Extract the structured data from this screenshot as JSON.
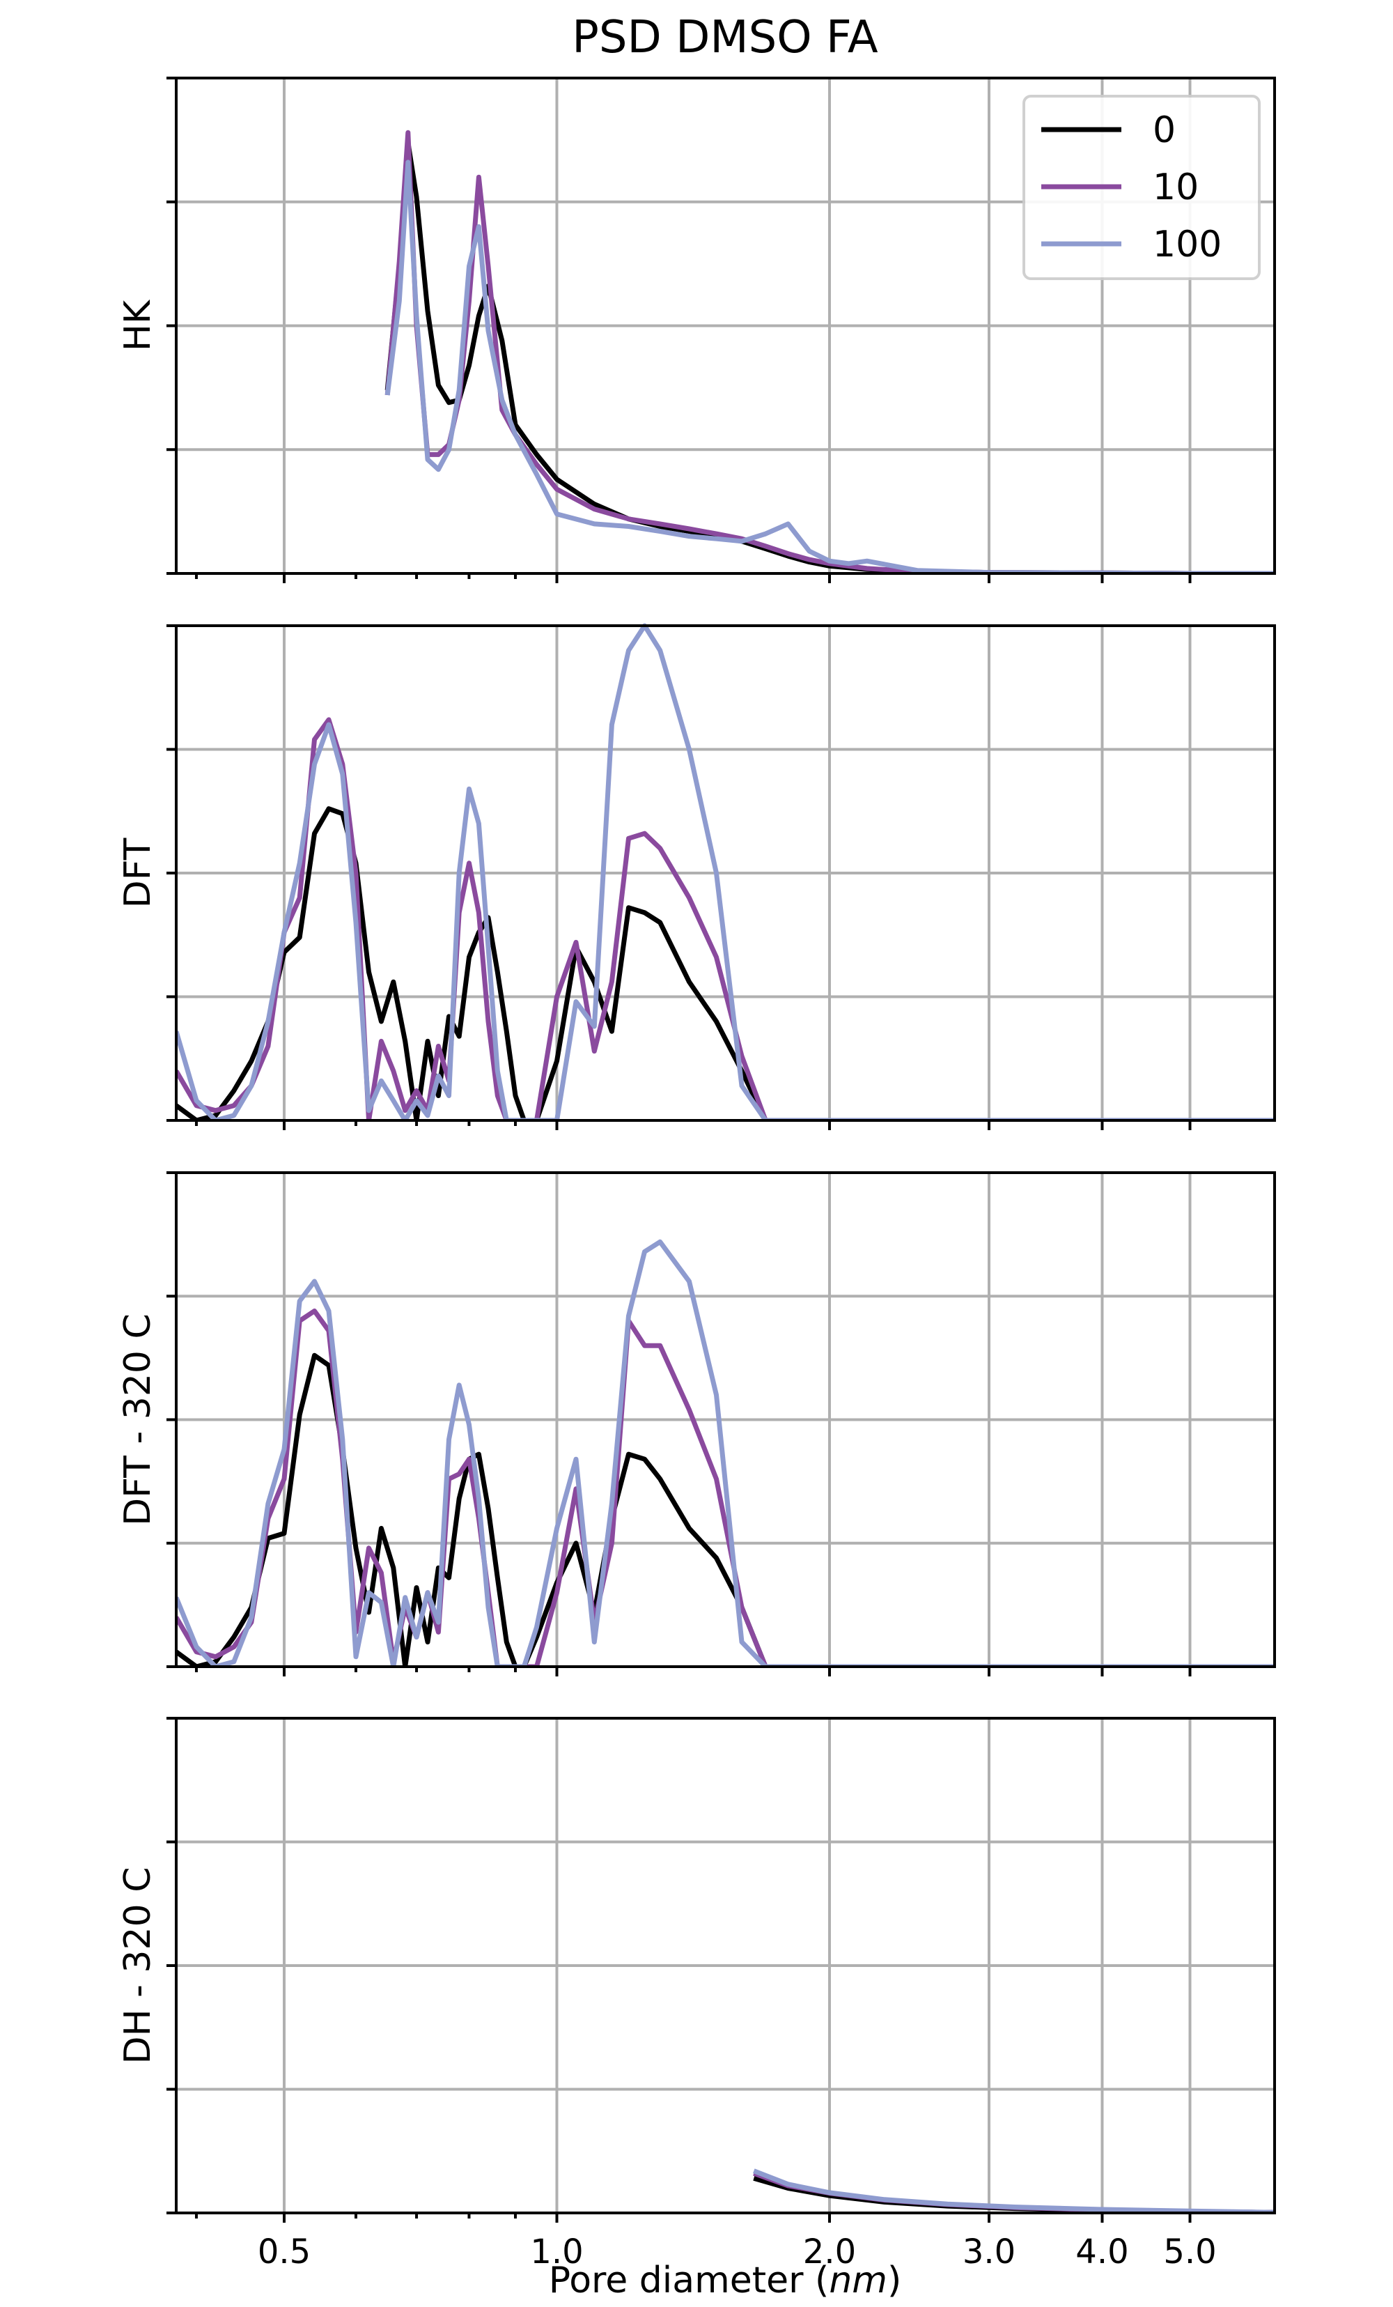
{
  "chart_data": {
    "type": "line",
    "title": "PSD DMSO FA",
    "xlabel_main": "Pore diameter (",
    "xlabel_unit": "nm",
    "xlabel_close": ")",
    "x_scale": "log",
    "xlim": [
      0.38,
      6.2
    ],
    "x_ticks": [
      {
        "value": 0.5,
        "label": "0.5"
      },
      {
        "value": 1.0,
        "label": "1.0"
      },
      {
        "value": 2.0,
        "label": "2.0"
      },
      {
        "value": 3.0,
        "label": "3.0"
      },
      {
        "value": 4.0,
        "label": "4.0"
      },
      {
        "value": 5.0,
        "label": "5.0"
      }
    ],
    "x_minor_ticks": [
      0.4,
      0.6,
      0.7,
      0.8,
      0.9
    ],
    "grid": true,
    "legend_placement": "top-right",
    "legend_in_panel": 0,
    "series_styles": [
      {
        "name": "0",
        "color": "#000000"
      },
      {
        "name": "10",
        "color": "#8a4a9e"
      },
      {
        "name": "100",
        "color": "#8e9bcf"
      }
    ],
    "panels": [
      {
        "ylabel": "HK",
        "ylim": [
          0,
          1
        ],
        "y_ticks": [
          0,
          0.25,
          0.5,
          0.75,
          1.0
        ],
        "series": [
          {
            "name": "0",
            "x": [
              0.65,
              0.67,
              0.685,
              0.7,
              0.72,
              0.74,
              0.76,
              0.78,
              0.8,
              0.82,
              0.84,
              0.87,
              0.9,
              0.95,
              1.0,
              1.1,
              1.2,
              1.3,
              1.4,
              1.5,
              1.6,
              1.7,
              1.8,
              1.9,
              2.0,
              2.2,
              2.5,
              3.0,
              4.0,
              5.0,
              6.2
            ],
            "y": [
              0.37,
              0.62,
              0.87,
              0.76,
              0.53,
              0.38,
              0.345,
              0.35,
              0.42,
              0.52,
              0.58,
              0.47,
              0.3,
              0.24,
              0.19,
              0.14,
              0.11,
              0.095,
              0.085,
              0.075,
              0.065,
              0.05,
              0.035,
              0.023,
              0.015,
              0.008,
              0.004,
              0.002,
              0.001,
              0.0,
              0.0
            ]
          },
          {
            "name": "10",
            "x": [
              0.65,
              0.67,
              0.685,
              0.7,
              0.72,
              0.74,
              0.76,
              0.78,
              0.8,
              0.82,
              0.84,
              0.87,
              0.9,
              0.95,
              1.0,
              1.1,
              1.2,
              1.3,
              1.4,
              1.5,
              1.6,
              1.7,
              1.8,
              1.9,
              2.0,
              2.2,
              2.5,
              3.0,
              4.0,
              5.0,
              6.2
            ],
            "y": [
              0.36,
              0.63,
              0.89,
              0.5,
              0.24,
              0.24,
              0.26,
              0.35,
              0.55,
              0.8,
              0.62,
              0.33,
              0.28,
              0.22,
              0.17,
              0.13,
              0.11,
              0.1,
              0.09,
              0.08,
              0.07,
              0.055,
              0.04,
              0.028,
              0.02,
              0.01,
              0.004,
              0.002,
              0.001,
              0.0,
              0.0
            ]
          },
          {
            "name": "100",
            "x": [
              0.65,
              0.67,
              0.685,
              0.7,
              0.72,
              0.74,
              0.76,
              0.78,
              0.8,
              0.82,
              0.84,
              0.87,
              0.9,
              0.95,
              1.0,
              1.1,
              1.2,
              1.3,
              1.4,
              1.5,
              1.6,
              1.7,
              1.8,
              1.9,
              2.0,
              2.1,
              2.2,
              2.5,
              3.0,
              4.0,
              5.0,
              6.2
            ],
            "y": [
              0.36,
              0.55,
              0.83,
              0.52,
              0.23,
              0.21,
              0.25,
              0.37,
              0.62,
              0.7,
              0.49,
              0.35,
              0.28,
              0.2,
              0.12,
              0.1,
              0.095,
              0.085,
              0.075,
              0.07,
              0.065,
              0.08,
              0.1,
              0.045,
              0.025,
              0.02,
              0.025,
              0.006,
              0.002,
              0.001,
              0.0,
              0.0
            ]
          }
        ]
      },
      {
        "ylabel": "DFT",
        "ylim": [
          0,
          1
        ],
        "y_ticks": [
          0,
          0.25,
          0.5,
          0.75,
          1.0
        ],
        "series": [
          {
            "name": "0",
            "x": [
              0.38,
              0.4,
              0.42,
              0.44,
              0.46,
              0.48,
              0.5,
              0.52,
              0.54,
              0.56,
              0.58,
              0.6,
              0.62,
              0.64,
              0.66,
              0.68,
              0.7,
              0.72,
              0.74,
              0.76,
              0.78,
              0.8,
              0.82,
              0.84,
              0.86,
              0.88,
              0.9,
              0.92,
              0.95,
              1.0,
              1.05,
              1.1,
              1.15,
              1.2,
              1.25,
              1.3,
              1.4,
              1.5,
              1.6,
              1.7,
              1.8,
              1.9,
              2.0,
              3.0,
              4.0,
              6.2
            ],
            "y": [
              0.03,
              0.0,
              0.01,
              0.06,
              0.12,
              0.2,
              0.34,
              0.37,
              0.58,
              0.63,
              0.62,
              0.52,
              0.3,
              0.2,
              0.28,
              0.16,
              0.0,
              0.16,
              0.05,
              0.21,
              0.17,
              0.33,
              0.38,
              0.41,
              0.3,
              0.18,
              0.05,
              0.0,
              0.0,
              0.12,
              0.35,
              0.28,
              0.18,
              0.43,
              0.42,
              0.4,
              0.28,
              0.2,
              0.1,
              0.0,
              0.0,
              0.0,
              0.0,
              0.0,
              0.0,
              0.0
            ]
          },
          {
            "name": "10",
            "x": [
              0.38,
              0.4,
              0.42,
              0.44,
              0.46,
              0.48,
              0.5,
              0.52,
              0.54,
              0.56,
              0.58,
              0.6,
              0.62,
              0.64,
              0.66,
              0.68,
              0.7,
              0.72,
              0.74,
              0.76,
              0.78,
              0.8,
              0.82,
              0.84,
              0.86,
              0.88,
              0.9,
              0.92,
              0.95,
              1.0,
              1.05,
              1.1,
              1.15,
              1.2,
              1.25,
              1.3,
              1.4,
              1.5,
              1.6,
              1.7,
              1.8,
              1.9,
              2.0,
              3.0,
              4.0,
              6.2
            ],
            "y": [
              0.1,
              0.03,
              0.02,
              0.03,
              0.07,
              0.15,
              0.38,
              0.45,
              0.77,
              0.81,
              0.72,
              0.5,
              0.0,
              0.16,
              0.1,
              0.02,
              0.06,
              0.02,
              0.15,
              0.08,
              0.42,
              0.52,
              0.42,
              0.2,
              0.05,
              0.0,
              0.0,
              0.0,
              0.0,
              0.25,
              0.36,
              0.14,
              0.28,
              0.57,
              0.58,
              0.55,
              0.45,
              0.33,
              0.13,
              0.0,
              0.0,
              0.0,
              0.0,
              0.0,
              0.0,
              0.0
            ]
          },
          {
            "name": "100",
            "x": [
              0.38,
              0.4,
              0.42,
              0.44,
              0.46,
              0.48,
              0.5,
              0.52,
              0.54,
              0.56,
              0.58,
              0.6,
              0.62,
              0.64,
              0.66,
              0.68,
              0.7,
              0.72,
              0.74,
              0.76,
              0.78,
              0.8,
              0.82,
              0.84,
              0.86,
              0.88,
              0.9,
              0.92,
              0.95,
              1.0,
              1.05,
              1.1,
              1.15,
              1.2,
              1.25,
              1.3,
              1.4,
              1.5,
              1.6,
              1.7,
              1.8,
              1.9,
              2.0,
              3.0,
              4.0,
              6.2
            ],
            "y": [
              0.18,
              0.04,
              0.0,
              0.01,
              0.07,
              0.2,
              0.38,
              0.52,
              0.72,
              0.8,
              0.7,
              0.4,
              0.02,
              0.08,
              0.04,
              0.0,
              0.04,
              0.01,
              0.09,
              0.05,
              0.5,
              0.67,
              0.6,
              0.35,
              0.1,
              0.0,
              0.0,
              0.0,
              0.0,
              0.0,
              0.24,
              0.19,
              0.8,
              0.95,
              1.0,
              0.95,
              0.75,
              0.5,
              0.07,
              0.0,
              0.0,
              0.0,
              0.0,
              0.0,
              0.0,
              0.0
            ]
          }
        ]
      },
      {
        "ylabel": "DFT - 320 C",
        "ylim": [
          0,
          1
        ],
        "y_ticks": [
          0,
          0.25,
          0.5,
          0.75,
          1.0
        ],
        "series": [
          {
            "name": "0",
            "x": [
              0.38,
              0.4,
              0.42,
              0.44,
              0.46,
              0.48,
              0.5,
              0.52,
              0.54,
              0.56,
              0.58,
              0.6,
              0.62,
              0.64,
              0.66,
              0.68,
              0.7,
              0.72,
              0.74,
              0.76,
              0.78,
              0.8,
              0.82,
              0.84,
              0.86,
              0.88,
              0.9,
              0.92,
              0.95,
              1.0,
              1.05,
              1.1,
              1.15,
              1.2,
              1.25,
              1.3,
              1.4,
              1.5,
              1.6,
              1.7,
              1.8,
              1.9,
              2.0,
              3.0,
              4.0,
              6.2
            ],
            "y": [
              0.03,
              0.0,
              0.01,
              0.06,
              0.12,
              0.26,
              0.27,
              0.51,
              0.63,
              0.61,
              0.44,
              0.24,
              0.11,
              0.28,
              0.2,
              0.0,
              0.16,
              0.05,
              0.2,
              0.18,
              0.34,
              0.42,
              0.43,
              0.32,
              0.18,
              0.05,
              0.0,
              0.0,
              0.06,
              0.17,
              0.25,
              0.11,
              0.3,
              0.43,
              0.42,
              0.38,
              0.28,
              0.22,
              0.12,
              0.0,
              0.0,
              0.0,
              0.0,
              0.0,
              0.0,
              0.0
            ]
          },
          {
            "name": "10",
            "x": [
              0.38,
              0.4,
              0.42,
              0.44,
              0.46,
              0.48,
              0.5,
              0.52,
              0.54,
              0.56,
              0.58,
              0.6,
              0.62,
              0.64,
              0.66,
              0.68,
              0.7,
              0.72,
              0.74,
              0.76,
              0.78,
              0.8,
              0.82,
              0.84,
              0.86,
              0.88,
              0.9,
              0.92,
              0.95,
              1.0,
              1.05,
              1.1,
              1.15,
              1.2,
              1.25,
              1.3,
              1.4,
              1.5,
              1.6,
              1.7,
              1.8,
              1.9,
              2.0,
              3.0,
              4.0,
              6.2
            ],
            "y": [
              0.1,
              0.03,
              0.02,
              0.04,
              0.09,
              0.3,
              0.38,
              0.7,
              0.72,
              0.68,
              0.42,
              0.07,
              0.24,
              0.19,
              0.01,
              0.12,
              0.06,
              0.15,
              0.07,
              0.38,
              0.39,
              0.42,
              0.3,
              0.15,
              0.0,
              0.0,
              0.0,
              0.0,
              0.0,
              0.15,
              0.36,
              0.09,
              0.25,
              0.7,
              0.65,
              0.65,
              0.52,
              0.38,
              0.12,
              0.0,
              0.0,
              0.0,
              0.0,
              0.0,
              0.0,
              0.0
            ]
          },
          {
            "name": "100",
            "x": [
              0.38,
              0.4,
              0.42,
              0.44,
              0.46,
              0.48,
              0.5,
              0.52,
              0.54,
              0.56,
              0.58,
              0.6,
              0.62,
              0.64,
              0.66,
              0.68,
              0.7,
              0.72,
              0.74,
              0.76,
              0.78,
              0.8,
              0.82,
              0.84,
              0.86,
              0.88,
              0.9,
              0.92,
              0.95,
              1.0,
              1.05,
              1.1,
              1.15,
              1.2,
              1.25,
              1.3,
              1.4,
              1.5,
              1.6,
              1.7,
              1.8,
              1.9,
              2.0,
              3.0,
              4.0,
              6.2
            ],
            "y": [
              0.14,
              0.04,
              0.0,
              0.01,
              0.1,
              0.33,
              0.44,
              0.74,
              0.78,
              0.72,
              0.46,
              0.02,
              0.15,
              0.13,
              0.0,
              0.14,
              0.06,
              0.15,
              0.09,
              0.46,
              0.57,
              0.49,
              0.34,
              0.12,
              0.0,
              0.0,
              0.0,
              0.0,
              0.08,
              0.28,
              0.42,
              0.05,
              0.33,
              0.71,
              0.84,
              0.86,
              0.78,
              0.55,
              0.05,
              0.0,
              0.0,
              0.0,
              0.0,
              0.0,
              0.0,
              0.0
            ]
          }
        ]
      },
      {
        "ylabel": "DH - 320 C",
        "ylim": [
          0,
          1
        ],
        "y_ticks": [
          0,
          0.25,
          0.5,
          0.75,
          1.0
        ],
        "series": [
          {
            "name": "0",
            "x": [
              1.65,
              1.8,
              2.0,
              2.3,
              2.7,
              3.2,
              4.0,
              5.0,
              6.2
            ],
            "y": [
              0.07,
              0.05,
              0.035,
              0.022,
              0.014,
              0.009,
              0.005,
              0.003,
              0.001
            ]
          },
          {
            "name": "10",
            "x": [
              1.65,
              1.8,
              2.0,
              2.3,
              2.7,
              3.2,
              4.0,
              5.0,
              6.2
            ],
            "y": [
              0.08,
              0.055,
              0.04,
              0.026,
              0.017,
              0.011,
              0.006,
              0.003,
              0.001
            ]
          },
          {
            "name": "100",
            "x": [
              1.65,
              1.8,
              2.0,
              2.3,
              2.7,
              3.2,
              4.0,
              5.0,
              6.2
            ],
            "y": [
              0.085,
              0.058,
              0.041,
              0.027,
              0.018,
              0.012,
              0.007,
              0.004,
              0.001
            ]
          }
        ]
      }
    ]
  }
}
